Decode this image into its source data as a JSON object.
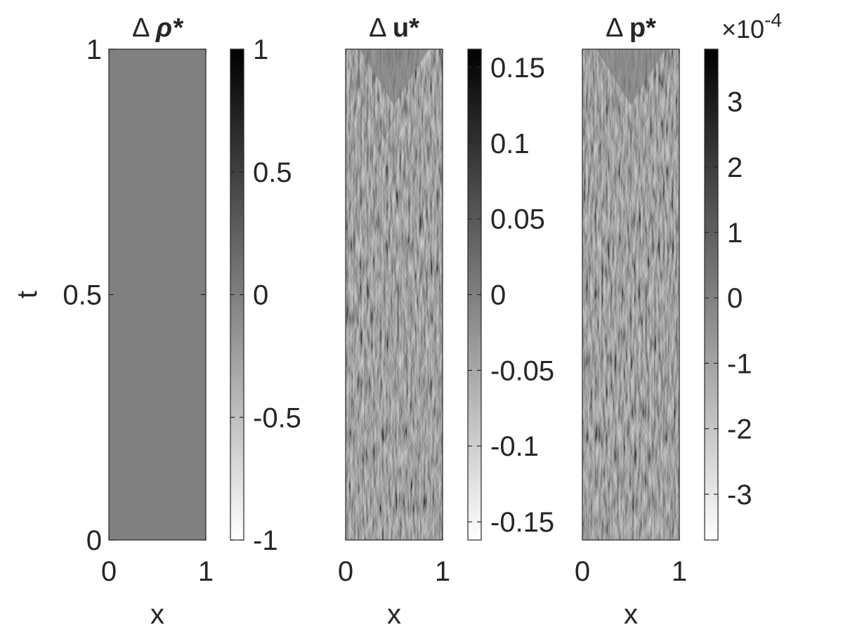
{
  "chart_data": [
    {
      "type": "heatmap",
      "title_symbol": "Δ",
      "title_var": "ρ*",
      "title_var_italic": true,
      "xlabel": "x",
      "ylabel": "t",
      "xlim": [
        0,
        1
      ],
      "ylim": [
        0,
        1
      ],
      "xticks": [
        "0",
        "1"
      ],
      "yticks": [
        "0",
        "0.5",
        "1"
      ],
      "pattern": "uniform",
      "field_value": 0,
      "colormap": "gray (white = low, black = high)",
      "colorbar": {
        "clim": [
          -1,
          1
        ],
        "ticks": [
          -1,
          -0.5,
          0,
          0.5,
          1
        ],
        "tick_labels": [
          "-1",
          "-0.5",
          "0",
          "0.5",
          "1"
        ],
        "exponent_label": ""
      }
    },
    {
      "type": "heatmap",
      "title_symbol": "Δ",
      "title_var": "u*",
      "title_var_italic": false,
      "xlabel": "x",
      "ylabel": "",
      "xlim": [
        0,
        1
      ],
      "ylim": [
        0,
        1
      ],
      "xticks": [
        "0",
        "1"
      ],
      "yticks": [],
      "pattern": "oscillatory wave pattern with crossing characteristics",
      "colormap": "gray (white = low, black = high)",
      "colorbar": {
        "clim": [
          -0.162,
          0.162
        ],
        "ticks": [
          -0.15,
          -0.1,
          -0.05,
          0,
          0.05,
          0.1,
          0.15
        ],
        "tick_labels": [
          "-0.15",
          "-0.1",
          "-0.05",
          "0",
          "0.05",
          "0.1",
          "0.15"
        ],
        "exponent_label": ""
      }
    },
    {
      "type": "heatmap",
      "title_symbol": "Δ",
      "title_var": "p*",
      "title_var_italic": false,
      "xlabel": "x",
      "ylabel": "",
      "xlim": [
        0,
        1
      ],
      "ylim": [
        0,
        1
      ],
      "xticks": [
        "0",
        "1"
      ],
      "yticks": [],
      "pattern": "oscillatory wave pattern with crossing characteristics",
      "colormap": "gray (white = low, black = high)",
      "colorbar": {
        "clim": [
          -3.7,
          3.8
        ],
        "ticks": [
          -3,
          -2,
          -1,
          0,
          1,
          2,
          3
        ],
        "tick_labels": [
          "-3",
          "-2",
          "-1",
          "0",
          "1",
          "2",
          "3"
        ],
        "exponent_label": "×10",
        "exponent_power": "-4"
      }
    }
  ]
}
